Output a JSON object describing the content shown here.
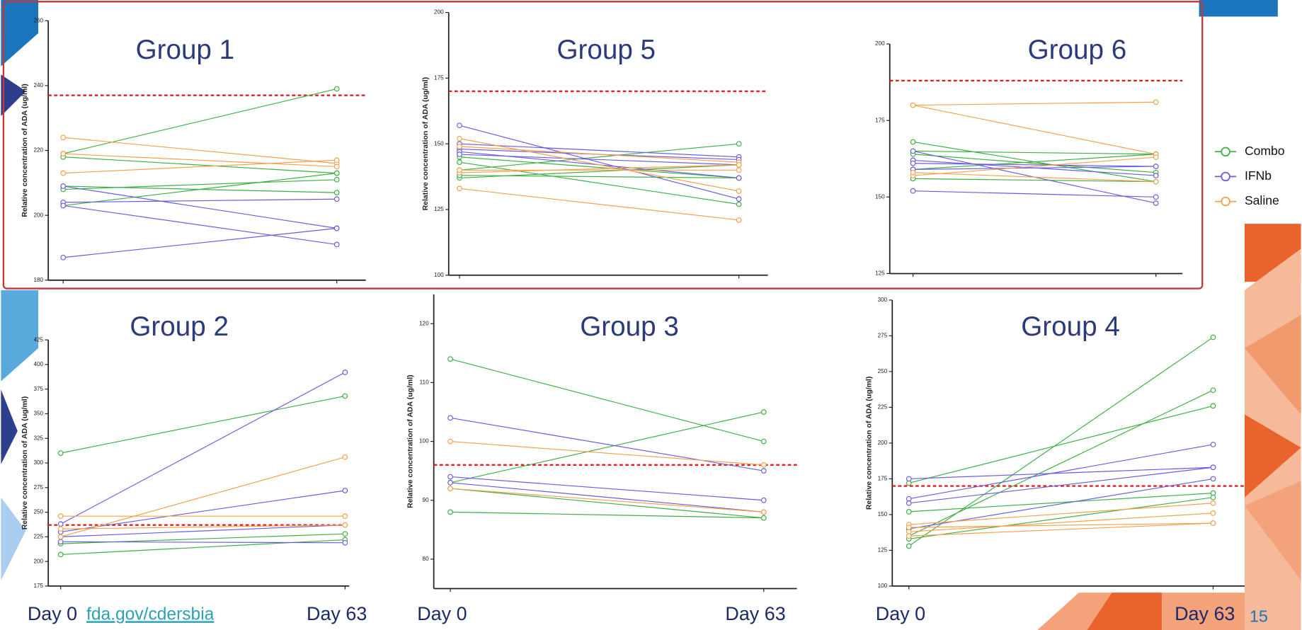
{
  "slide": {
    "footer": "fda.gov/cdersbia",
    "page_number": "15"
  },
  "legend": [
    {
      "name": "Combo",
      "color": "#3cb043"
    },
    {
      "name": "IFNb",
      "color": "#6a5ce0"
    },
    {
      "name": "Saline",
      "color": "#f5a04a"
    }
  ],
  "chart_data": [
    {
      "type": "line",
      "title": "Group 1",
      "y_label": "Relative concentration of ADA (ug/ml)",
      "categories": [
        null,
        null
      ],
      "ylim": [
        180,
        260
      ],
      "yticks": [
        180,
        200,
        220,
        240,
        260
      ],
      "threshold": 237,
      "threshold_color": "#e02020",
      "series": [
        {
          "color": "#3cb043",
          "values": [
            219,
            239
          ]
        },
        {
          "color": "#3cb043",
          "values": [
            218,
            213
          ]
        },
        {
          "color": "#3cb043",
          "values": [
            208,
            211
          ]
        },
        {
          "color": "#3cb043",
          "values": [
            209,
            207
          ]
        },
        {
          "color": "#3cb043",
          "values": [
            203,
            213
          ]
        },
        {
          "color": "#6a5ce0",
          "values": [
            209,
            196
          ]
        },
        {
          "color": "#6a5ce0",
          "values": [
            204,
            205
          ]
        },
        {
          "color": "#6a5ce0",
          "values": [
            203,
            191
          ]
        },
        {
          "color": "#6a5ce0",
          "values": [
            187,
            196
          ]
        },
        {
          "color": "#f5a04a",
          "values": [
            224,
            216
          ]
        },
        {
          "color": "#f5a04a",
          "values": [
            213,
            217
          ]
        },
        {
          "color": "#f5a04a",
          "values": [
            219,
            215
          ]
        }
      ]
    },
    {
      "type": "line",
      "title": "Group 5",
      "y_label": "Relative concentration of ADA (ug/ml)",
      "categories": [
        null,
        null
      ],
      "ylim": [
        100,
        200
      ],
      "yticks": [
        100,
        125,
        150,
        175,
        200
      ],
      "threshold": 170,
      "threshold_color": "#e02020",
      "series": [
        {
          "color": "#3cb043",
          "values": [
            140,
            150
          ]
        },
        {
          "color": "#3cb043",
          "values": [
            137,
            142
          ]
        },
        {
          "color": "#3cb043",
          "values": [
            145,
            137
          ]
        },
        {
          "color": "#3cb043",
          "values": [
            143,
            127
          ]
        },
        {
          "color": "#3cb043",
          "values": [
            138,
            137
          ]
        },
        {
          "color": "#6a5ce0",
          "values": [
            157,
            129
          ]
        },
        {
          "color": "#6a5ce0",
          "values": [
            150,
            145
          ]
        },
        {
          "color": "#6a5ce0",
          "values": [
            148,
            144
          ]
        },
        {
          "color": "#6a5ce0",
          "values": [
            147,
            137
          ]
        },
        {
          "color": "#6a5ce0",
          "values": [
            146,
            142
          ]
        },
        {
          "color": "#f5a04a",
          "values": [
            152,
            132
          ]
        },
        {
          "color": "#f5a04a",
          "values": [
            149,
            143
          ]
        },
        {
          "color": "#f5a04a",
          "values": [
            139,
            142
          ]
        },
        {
          "color": "#f5a04a",
          "values": [
            133,
            121
          ]
        },
        {
          "color": "#f5a04a",
          "values": [
            140,
            140
          ]
        }
      ]
    },
    {
      "type": "line",
      "title": "Group 6",
      "y_label": null,
      "categories": [
        null,
        null
      ],
      "ylim": [
        125,
        200
      ],
      "yticks": [
        125,
        150,
        175,
        200
      ],
      "threshold": 188,
      "threshold_color": "#e02020",
      "series": [
        {
          "color": "#3cb043",
          "values": [
            168,
            155
          ]
        },
        {
          "color": "#3cb043",
          "values": [
            165,
            164
          ]
        },
        {
          "color": "#3cb043",
          "values": [
            159,
            164
          ]
        },
        {
          "color": "#3cb043",
          "values": [
            156,
            155
          ]
        },
        {
          "color": "#3cb043",
          "values": [
            164,
            158
          ]
        },
        {
          "color": "#6a5ce0",
          "values": [
            162,
            157
          ]
        },
        {
          "color": "#6a5ce0",
          "values": [
            161,
            160
          ]
        },
        {
          "color": "#6a5ce0",
          "values": [
            152,
            150
          ]
        },
        {
          "color": "#6a5ce0",
          "values": [
            159,
            160
          ]
        },
        {
          "color": "#6a5ce0",
          "values": [
            165,
            148
          ]
        },
        {
          "color": "#f5a04a",
          "values": [
            180,
            181
          ]
        },
        {
          "color": "#f5a04a",
          "values": [
            180,
            164
          ]
        },
        {
          "color": "#f5a04a",
          "values": [
            157,
            163
          ]
        },
        {
          "color": "#f5a04a",
          "values": [
            158,
            155
          ]
        }
      ]
    },
    {
      "type": "line",
      "title": "Group 2",
      "y_label": "Relative concentration of ADA (ug/ml)",
      "categories": [
        "Day 0",
        "Day 63"
      ],
      "ylim": [
        175,
        425
      ],
      "yticks": [
        175,
        200,
        225,
        250,
        275,
        300,
        325,
        350,
        375,
        400,
        425
      ],
      "threshold": 237,
      "threshold_color": "#e02020",
      "series": [
        {
          "color": "#3cb043",
          "values": [
            310,
            368
          ]
        },
        {
          "color": "#3cb043",
          "values": [
            207,
            222
          ]
        },
        {
          "color": "#3cb043",
          "values": [
            218,
            228
          ]
        },
        {
          "color": "#6a5ce0",
          "values": [
            238,
            392
          ]
        },
        {
          "color": "#6a5ce0",
          "values": [
            230,
            272
          ]
        },
        {
          "color": "#6a5ce0",
          "values": [
            225,
            237
          ]
        },
        {
          "color": "#6a5ce0",
          "values": [
            220,
            219
          ]
        },
        {
          "color": "#f5a04a",
          "values": [
            246,
            246
          ]
        },
        {
          "color": "#f5a04a",
          "values": [
            225,
            306
          ]
        },
        {
          "color": "#f5a04a",
          "values": [
            233,
            237
          ]
        }
      ]
    },
    {
      "type": "line",
      "title": "Group 3",
      "y_label": "Relative concentration of ADA (ug/ml)",
      "categories": [
        "Day 0",
        "Day 63"
      ],
      "ylim": [
        75,
        125
      ],
      "yticks": [
        80,
        90,
        100,
        110,
        120
      ],
      "threshold": 96,
      "threshold_color": "#e02020",
      "series": [
        {
          "color": "#3cb043",
          "values": [
            114,
            100
          ]
        },
        {
          "color": "#3cb043",
          "values": [
            93,
            105
          ]
        },
        {
          "color": "#3cb043",
          "values": [
            92,
            87
          ]
        },
        {
          "color": "#3cb043",
          "values": [
            88,
            87
          ]
        },
        {
          "color": "#6a5ce0",
          "values": [
            104,
            95
          ]
        },
        {
          "color": "#6a5ce0",
          "values": [
            94,
            90
          ]
        },
        {
          "color": "#6a5ce0",
          "values": [
            93,
            88
          ]
        },
        {
          "color": "#f5a04a",
          "values": [
            100,
            96
          ]
        },
        {
          "color": "#f5a04a",
          "values": [
            92,
            88
          ]
        }
      ]
    },
    {
      "type": "line",
      "title": "Group 4",
      "y_label": "Relative concentration of ADA (ug/ml)",
      "categories": [
        "Day 0",
        "Day 63"
      ],
      "ylim": [
        100,
        300
      ],
      "yticks": [
        100,
        125,
        150,
        175,
        200,
        225,
        250,
        275,
        300
      ],
      "threshold": 170,
      "threshold_color": "#e02020",
      "series": [
        {
          "color": "#3cb043",
          "values": [
            128,
            274
          ]
        },
        {
          "color": "#3cb043",
          "values": [
            135,
            237
          ]
        },
        {
          "color": "#3cb043",
          "values": [
            172,
            226
          ]
        },
        {
          "color": "#3cb043",
          "values": [
            152,
            165
          ]
        },
        {
          "color": "#3cb043",
          "values": [
            133,
            162
          ]
        },
        {
          "color": "#6a5ce0",
          "values": [
            175,
            183
          ]
        },
        {
          "color": "#6a5ce0",
          "values": [
            161,
            199
          ]
        },
        {
          "color": "#6a5ce0",
          "values": [
            158,
            183
          ]
        },
        {
          "color": "#6a5ce0",
          "values": [
            140,
            175
          ]
        },
        {
          "color": "#f5a04a",
          "values": [
            143,
            158
          ]
        },
        {
          "color": "#f5a04a",
          "values": [
            138,
            151
          ]
        },
        {
          "color": "#f5a04a",
          "values": [
            135,
            144
          ]
        },
        {
          "color": "#f5a04a",
          "values": [
            141,
            144
          ]
        }
      ]
    }
  ]
}
